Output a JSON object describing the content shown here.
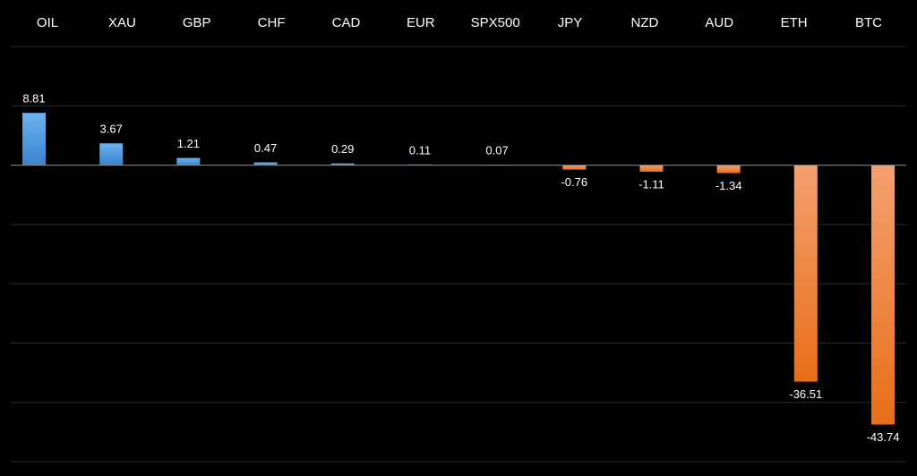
{
  "chart_data": {
    "type": "bar",
    "categories": [
      "OIL",
      "XAU",
      "GBP",
      "CHF",
      "CAD",
      "EUR",
      "SPX500",
      "JPY",
      "NZD",
      "AUD",
      "ETH",
      "BTC"
    ],
    "values": [
      8.81,
      3.67,
      1.21,
      0.47,
      0.29,
      0.11,
      0.07,
      -0.76,
      -1.11,
      -1.34,
      -36.51,
      -43.74
    ],
    "positive_color": "#4a95dc",
    "negative_color": "#f07a2a",
    "ylim": [
      -50,
      20
    ],
    "yticks": [
      -50,
      -40,
      -30,
      -20,
      -10,
      0,
      10,
      20
    ],
    "grid": true
  }
}
